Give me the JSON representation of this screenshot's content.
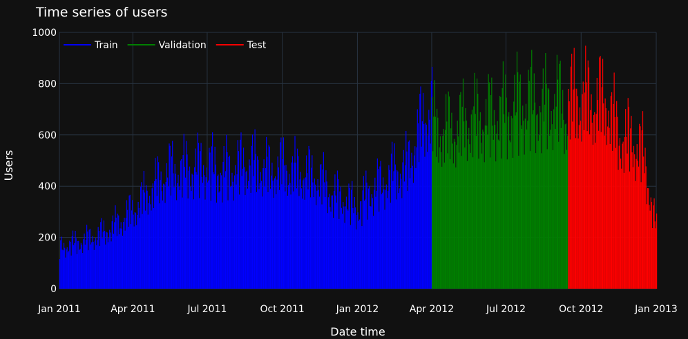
{
  "chart_data": {
    "type": "line",
    "title": "Time series of users",
    "xlabel": "Date time",
    "ylabel": "Users",
    "ylim": [
      0,
      1000
    ],
    "xlim": [
      "2011-01-01",
      "2013-01-01"
    ],
    "x_ticks": [
      {
        "date": "2011-01-01",
        "label": "Jan 2011"
      },
      {
        "date": "2011-04-01",
        "label": "Apr 2011"
      },
      {
        "date": "2011-07-01",
        "label": "Jul 2011"
      },
      {
        "date": "2011-10-01",
        "label": "Oct 2011"
      },
      {
        "date": "2012-01-01",
        "label": "Jan 2012"
      },
      {
        "date": "2012-04-01",
        "label": "Apr 2012"
      },
      {
        "date": "2012-07-01",
        "label": "Jul 2012"
      },
      {
        "date": "2012-10-01",
        "label": "Oct 2012"
      },
      {
        "date": "2013-01-01",
        "label": "Jan 2013"
      }
    ],
    "y_ticks": [
      0,
      200,
      400,
      600,
      800,
      1000
    ],
    "grid": true,
    "legend_position": "top-left",
    "series": [
      {
        "name": "Train",
        "color": "#0000ff",
        "x": [
          "2011-01-01",
          "2011-01-15",
          "2011-02-01",
          "2011-02-15",
          "2011-03-01",
          "2011-03-15",
          "2011-04-01",
          "2011-04-15",
          "2011-05-01",
          "2011-05-15",
          "2011-06-01",
          "2011-06-15",
          "2011-07-01",
          "2011-07-15",
          "2011-08-01",
          "2011-08-15",
          "2011-09-01",
          "2011-09-15",
          "2011-10-01",
          "2011-10-15",
          "2011-11-01",
          "2011-11-15",
          "2011-12-01",
          "2011-12-15",
          "2012-01-01",
          "2012-01-15",
          "2012-02-01",
          "2012-02-15",
          "2012-03-01",
          "2012-03-15",
          "2012-04-01"
        ],
        "values": [
          210,
          230,
          250,
          270,
          300,
          340,
          400,
          470,
          540,
          600,
          610,
          620,
          630,
          600,
          610,
          640,
          630,
          600,
          620,
          600,
          580,
          560,
          480,
          460,
          410,
          500,
          540,
          600,
          620,
          790,
          950
        ]
      },
      {
        "name": "Validation",
        "color": "#008000",
        "x": [
          "2012-04-01",
          "2012-04-15",
          "2012-05-01",
          "2012-05-15",
          "2012-06-01",
          "2012-06-15",
          "2012-07-01",
          "2012-07-15",
          "2012-08-01",
          "2012-08-15",
          "2012-09-01",
          "2012-09-15"
        ],
        "values": [
          820,
          800,
          810,
          860,
          860,
          880,
          900,
          940,
          950,
          920,
          960,
          880
        ]
      },
      {
        "name": "Test",
        "color": "#ff0000",
        "x": [
          "2012-09-15",
          "2012-10-01",
          "2012-10-15",
          "2012-11-01",
          "2012-11-15",
          "2012-12-01",
          "2012-12-15",
          "2013-01-01"
        ],
        "values": [
          960,
          970,
          950,
          960,
          780,
          760,
          700,
          300
        ]
      }
    ]
  }
}
